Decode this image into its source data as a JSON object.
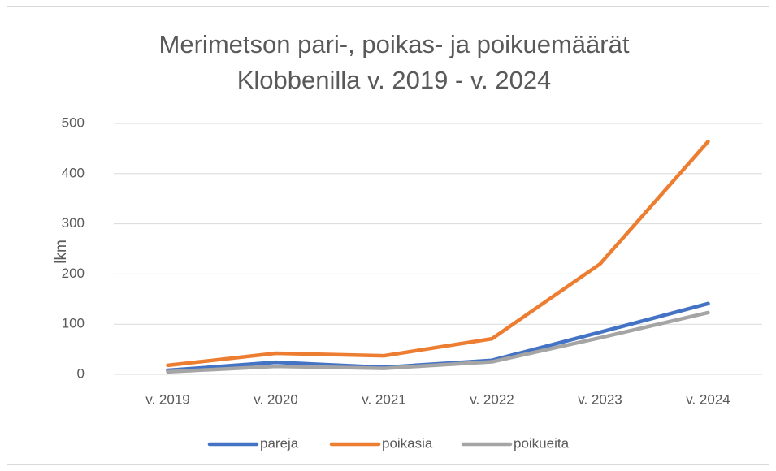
{
  "chart_data": {
    "type": "line",
    "title": [
      "Merimetson pari-, poikas- ja poikuemäärät",
      "Klobbenilla v. 2019 - v. 2024"
    ],
    "ylabel": "lkm",
    "categories": [
      "v. 2019",
      "v. 2020",
      "v. 2021",
      "v. 2022",
      "v. 2023",
      "v. 2024"
    ],
    "series": [
      {
        "name": "pareja",
        "color": "#4472c4",
        "values": [
          8,
          24,
          14,
          28,
          84,
          141
        ]
      },
      {
        "name": "poikasia",
        "color": "#ed7d31",
        "values": [
          18,
          42,
          37,
          71,
          220,
          464
        ]
      },
      {
        "name": "poikueita",
        "color": "#a5a5a5",
        "values": [
          5,
          16,
          12,
          25,
          73,
          123
        ]
      }
    ],
    "ylim": [
      0,
      500
    ],
    "yticks": [
      0,
      100,
      200,
      300,
      400,
      500
    ],
    "grid": true,
    "legend": "bottom"
  }
}
